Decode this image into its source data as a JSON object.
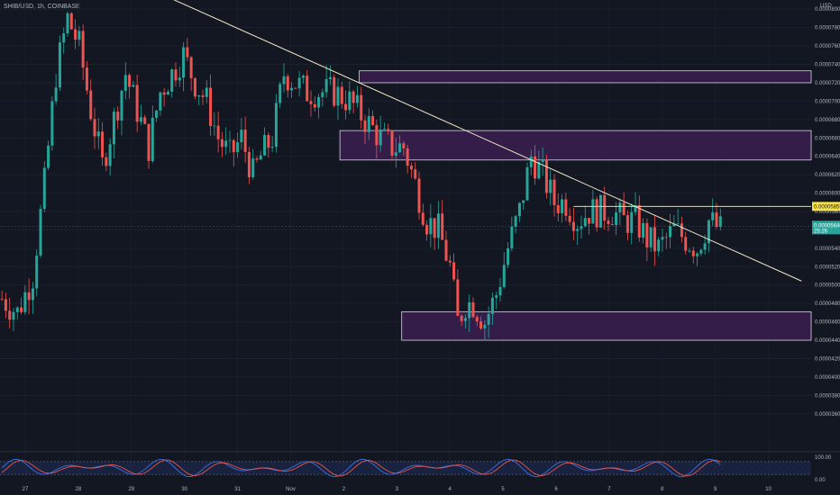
{
  "header": {
    "title": "SHIB/USD, 1h, COINBASE"
  },
  "axis_unit": "USD",
  "colors": {
    "background": "#131722",
    "up": "#26a69a",
    "down": "#ef5350",
    "trendline": "#f3e9c6",
    "level": "#f5e24a",
    "zone_fill": "#3b1f4f",
    "zone_stroke": "#d9d4e8",
    "stoch_k": "#3d6ee0",
    "stoch_d": "#e8554e",
    "stoch_band": "#1c2a4d",
    "current_tag": "#26a69a"
  },
  "chart_data": {
    "type": "candlestick",
    "title": "SHIB/USD, 1h, COINBASE",
    "ylim": [
      3.5e-05,
      8.1e-05
    ],
    "y_ticks": [
      "0.00008000",
      "0.00007800",
      "0.00007600",
      "0.00007400",
      "0.00007200",
      "0.00007000",
      "0.00006800",
      "0.00006600",
      "0.00006400",
      "0.00006200",
      "0.00006000",
      "0.00005800",
      "0.00005600",
      "0.00005400",
      "0.00005200",
      "0.00005000",
      "0.00004800",
      "0.00004600",
      "0.00004400",
      "0.00004200",
      "0.00004000",
      "0.00003800",
      "0.00003600"
    ],
    "x_ticks": [
      "27",
      "28",
      "29",
      "30",
      "31",
      "Nov",
      "2",
      "3",
      "4",
      "5",
      "6",
      "7",
      "8",
      "9",
      "10"
    ],
    "series_anchors": [
      [
        0,
        4.85e-05
      ],
      [
        4,
        4.7e-05
      ],
      [
        8,
        5.1e-05
      ],
      [
        11,
        6.1e-05
      ],
      [
        14,
        7.3e-05
      ],
      [
        17,
        7.9e-05
      ],
      [
        20,
        7.6e-05
      ],
      [
        23,
        6.9e-05
      ],
      [
        26,
        6.3e-05
      ],
      [
        29,
        6.8e-05
      ],
      [
        32,
        7.3e-05
      ],
      [
        35,
        6.9e-05
      ],
      [
        38,
        6.5e-05
      ],
      [
        41,
        7.1e-05
      ],
      [
        44,
        7.3e-05
      ],
      [
        47,
        7.5e-05
      ],
      [
        50,
        7.2e-05
      ],
      [
        53,
        7e-05
      ],
      [
        56,
        6.6e-05
      ],
      [
        59,
        6.4e-05
      ],
      [
        62,
        6.6e-05
      ],
      [
        65,
        6.2e-05
      ],
      [
        67,
        6.4e-05
      ],
      [
        70,
        6.6e-05
      ],
      [
        73,
        7.3e-05
      ],
      [
        76,
        7.2e-05
      ],
      [
        79,
        7.1e-05
      ],
      [
        82,
        7.1e-05
      ],
      [
        86,
        7.1e-05
      ],
      [
        90,
        7e-05
      ],
      [
        94,
        6.8e-05
      ],
      [
        98,
        6.6e-05
      ],
      [
        101,
        6.5e-05
      ],
      [
        104,
        6.5e-05
      ],
      [
        107,
        6.1e-05
      ],
      [
        110,
        5.7e-05
      ],
      [
        113,
        5.6e-05
      ],
      [
        116,
        5.2e-05
      ],
      [
        118,
        4.6e-05
      ],
      [
        120,
        4.8e-05
      ],
      [
        122,
        4.8e-05
      ],
      [
        125,
        4.6e-05
      ],
      [
        128,
        4.9e-05
      ],
      [
        131,
        5.4e-05
      ],
      [
        134,
        5.8e-05
      ],
      [
        137,
        6.4e-05
      ],
      [
        140,
        6.2e-05
      ],
      [
        143,
        5.9e-05
      ],
      [
        146,
        5.9e-05
      ],
      [
        149,
        5.7e-05
      ],
      [
        152,
        5.8e-05
      ],
      [
        155,
        5.8e-05
      ],
      [
        158,
        5.8e-05
      ],
      [
        161,
        5.7e-05
      ],
      [
        164,
        5.7e-05
      ],
      [
        167,
        5.5e-05
      ],
      [
        170,
        5.4e-05
      ],
      [
        172,
        5.5e-05
      ],
      [
        174,
        5.6e-05
      ],
      [
        177,
        5.5e-05
      ],
      [
        180,
        5.4e-05
      ],
      [
        183,
        5.7e-05
      ],
      [
        186,
        5.6e-05
      ]
    ],
    "trendline": {
      "start": [
        42,
        8.15e-05
      ],
      "end": [
        186,
        5.22e-05
      ]
    },
    "horizontal_level": {
      "value": 5.855e-05,
      "from": 148,
      "label": "0.00005855"
    },
    "current_price": {
      "value": 5.64e-05,
      "label": "0.00005640",
      "countdown": "25:26"
    },
    "zones": [
      {
        "from": 93,
        "to": 210,
        "top": 7.33e-05,
        "bottom": 7.2e-05
      },
      {
        "from": 88,
        "to": 210,
        "top": 6.68e-05,
        "bottom": 6.36e-05
      },
      {
        "from": 104,
        "to": 210,
        "top": 4.71e-05,
        "bottom": 4.4e-05
      }
    ],
    "oscillator": {
      "type": "stochastic",
      "y_ticks": [
        "100.00",
        "0.00"
      ],
      "band": [
        20,
        80
      ]
    }
  }
}
